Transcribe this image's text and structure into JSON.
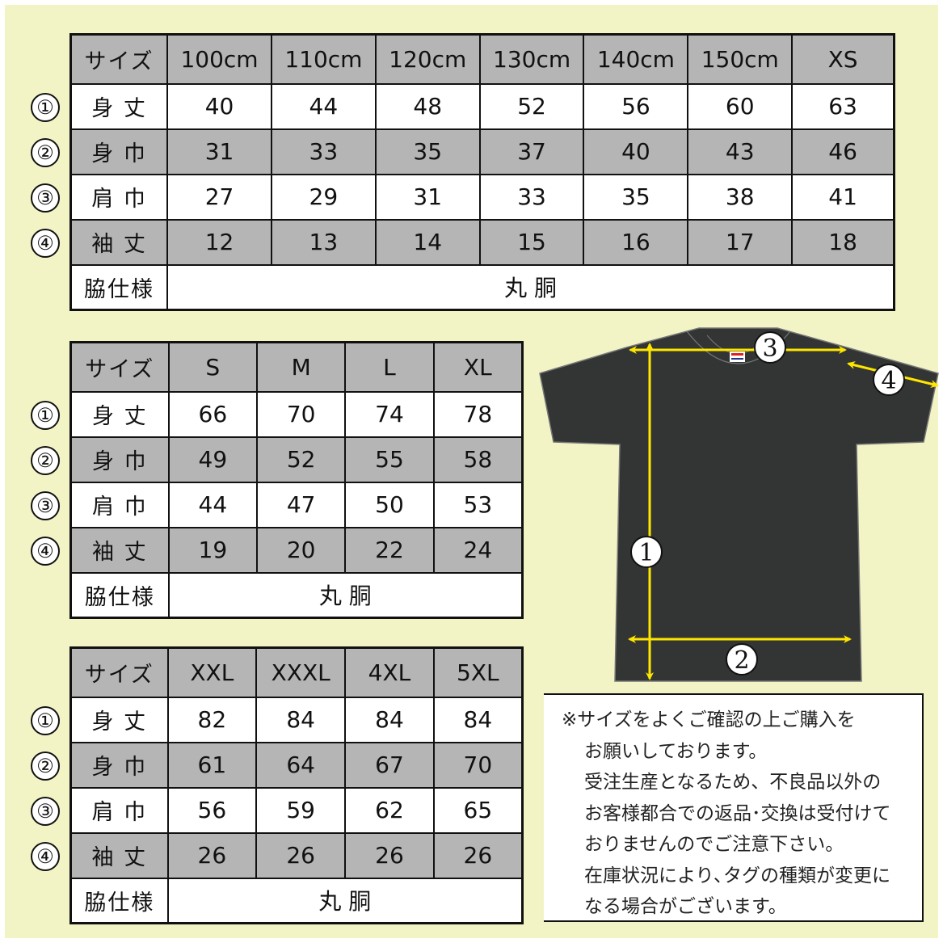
{
  "row_labels": {
    "size": "サイズ",
    "length": "身 丈",
    "width": "身 巾",
    "shoulder": "肩 巾",
    "sleeve": "袖 丈",
    "side": "脇仕様"
  },
  "row_numbers": [
    "①",
    "②",
    "③",
    "④"
  ],
  "side_value": "丸 胴",
  "tables": [
    {
      "sizes": [
        "100cm",
        "110cm",
        "120cm",
        "130cm",
        "140cm",
        "150cm",
        "XS"
      ],
      "length": [
        "40",
        "44",
        "48",
        "52",
        "56",
        "60",
        "63"
      ],
      "width": [
        "31",
        "33",
        "35",
        "37",
        "40",
        "43",
        "46"
      ],
      "shoulder": [
        "27",
        "29",
        "31",
        "33",
        "35",
        "38",
        "41"
      ],
      "sleeve": [
        "12",
        "13",
        "14",
        "15",
        "16",
        "17",
        "18"
      ]
    },
    {
      "sizes": [
        "S",
        "M",
        "L",
        "XL"
      ],
      "length": [
        "66",
        "70",
        "74",
        "78"
      ],
      "width": [
        "49",
        "52",
        "55",
        "58"
      ],
      "shoulder": [
        "44",
        "47",
        "50",
        "53"
      ],
      "sleeve": [
        "19",
        "20",
        "22",
        "24"
      ]
    },
    {
      "sizes": [
        "XXL",
        "XXXL",
        "4XL",
        "5XL"
      ],
      "length": [
        "82",
        "84",
        "84",
        "84"
      ],
      "width": [
        "61",
        "64",
        "67",
        "70"
      ],
      "shoulder": [
        "56",
        "59",
        "62",
        "65"
      ],
      "sleeve": [
        "26",
        "26",
        "26",
        "26"
      ]
    }
  ],
  "diagram": {
    "markers": [
      "1",
      "2",
      "3",
      "4"
    ],
    "shirt_color": "#323534",
    "arrow_color": "#ffe600"
  },
  "notice": {
    "lines": [
      "※サイズをよくご確認の上ご購入を",
      "お願いしております。",
      "受注生産となるため、不良品以外の",
      "お客様都合での返品･交換は受付けて",
      "おりませんのでご注意下さい。",
      "在庫状況により､タグの種類が変更に",
      "なる場合がございます。"
    ]
  },
  "colors": {
    "background": "#f3f4c6",
    "header_gray": "#b5b5b5"
  }
}
